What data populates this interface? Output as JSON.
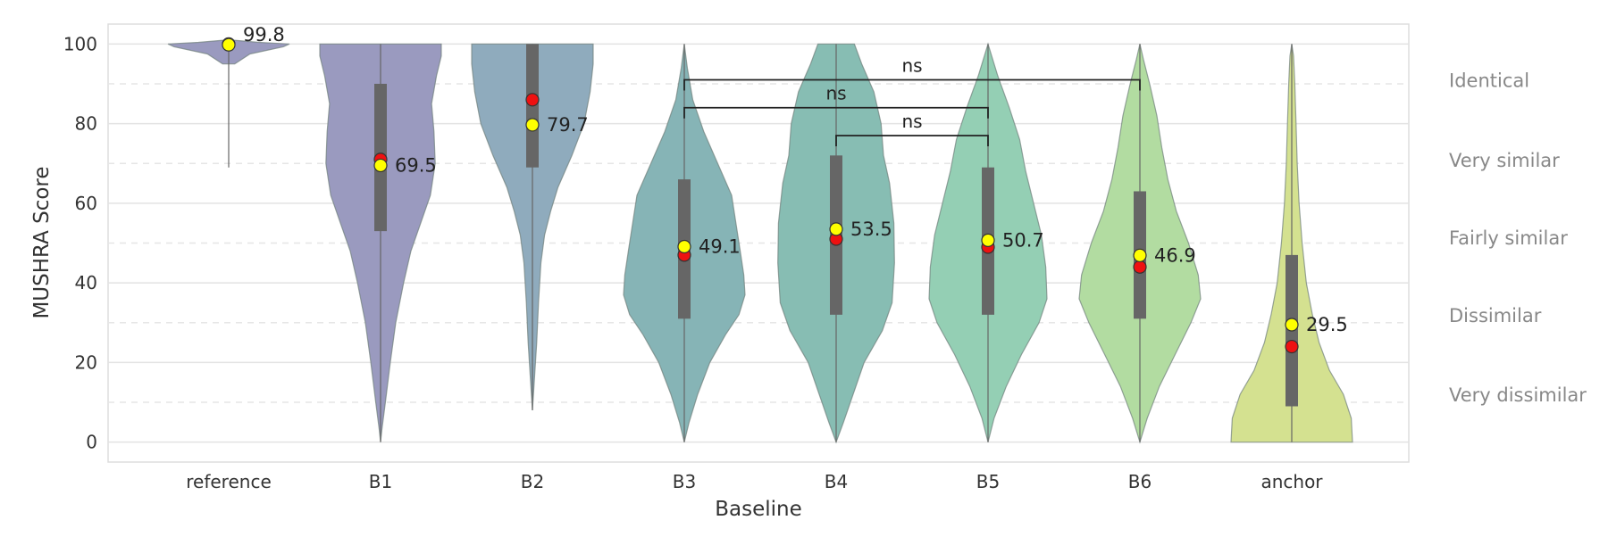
{
  "chart_data": {
    "type": "violin",
    "title": "",
    "xlabel": "Baseline",
    "ylabel": "MUSHRA Score",
    "ylim": [
      -5,
      105
    ],
    "yticks": [
      0,
      20,
      40,
      60,
      80,
      100
    ],
    "grid": true,
    "categories": [
      "reference",
      "B1",
      "B2",
      "B3",
      "B4",
      "B5",
      "B6",
      "anchor"
    ],
    "colors": [
      "#9a9abf",
      "#9a9abf",
      "#8fabbd",
      "#86b4b6",
      "#87bdb3",
      "#94cfb4",
      "#b2dca1",
      "#d4e190"
    ],
    "violins": [
      {
        "name": "reference",
        "mean": 99.8,
        "mean_label": "99.8",
        "median": 100,
        "box": [
          100,
          100
        ],
        "whisker": [
          69,
          100
        ],
        "shape": [
          [
            95,
            0.1
          ],
          [
            97.5,
            0.35
          ],
          [
            99.3,
            0.9
          ],
          [
            100,
            1.0
          ],
          [
            100.4,
            0.5
          ],
          [
            101,
            0.05
          ]
        ]
      },
      {
        "name": "B1",
        "mean": 69.5,
        "mean_label": "69.5",
        "median": 71,
        "box": [
          53,
          90
        ],
        "whisker": [
          0,
          100
        ],
        "shape": [
          [
            0,
            0.0
          ],
          [
            3,
            0.02
          ],
          [
            10,
            0.08
          ],
          [
            20,
            0.16
          ],
          [
            30,
            0.25
          ],
          [
            40,
            0.38
          ],
          [
            48,
            0.5
          ],
          [
            55,
            0.66
          ],
          [
            62,
            0.82
          ],
          [
            70,
            0.9
          ],
          [
            78,
            0.88
          ],
          [
            85,
            0.84
          ],
          [
            92,
            0.92
          ],
          [
            97,
            1.0
          ],
          [
            100,
            1.0
          ]
        ]
      },
      {
        "name": "B2",
        "mean": 79.7,
        "mean_label": "79.7",
        "median": 86,
        "box": [
          69,
          100
        ],
        "whisker": [
          8,
          100
        ],
        "shape": [
          [
            8,
            0.0
          ],
          [
            15,
            0.03
          ],
          [
            25,
            0.07
          ],
          [
            35,
            0.1
          ],
          [
            45,
            0.14
          ],
          [
            52,
            0.2
          ],
          [
            58,
            0.3
          ],
          [
            64,
            0.42
          ],
          [
            72,
            0.65
          ],
          [
            80,
            0.85
          ],
          [
            88,
            0.95
          ],
          [
            95,
            1.0
          ],
          [
            100,
            1.0
          ]
        ]
      },
      {
        "name": "B3",
        "mean": 49.1,
        "mean_label": "49.1",
        "median": 47,
        "box": [
          31,
          66
        ],
        "whisker": [
          0,
          100
        ],
        "shape": [
          [
            0,
            0.0
          ],
          [
            5,
            0.08
          ],
          [
            12,
            0.22
          ],
          [
            20,
            0.42
          ],
          [
            27,
            0.68
          ],
          [
            32,
            0.9
          ],
          [
            37,
            1.0
          ],
          [
            42,
            0.98
          ],
          [
            48,
            0.92
          ],
          [
            55,
            0.85
          ],
          [
            62,
            0.78
          ],
          [
            70,
            0.55
          ],
          [
            78,
            0.32
          ],
          [
            86,
            0.14
          ],
          [
            94,
            0.05
          ],
          [
            100,
            0.0
          ]
        ]
      },
      {
        "name": "B4",
        "mean": 53.5,
        "mean_label": "53.5",
        "median": 51,
        "box": [
          32,
          72
        ],
        "whisker": [
          0,
          100
        ],
        "shape": [
          [
            0,
            0.0
          ],
          [
            5,
            0.12
          ],
          [
            12,
            0.28
          ],
          [
            20,
            0.46
          ],
          [
            28,
            0.76
          ],
          [
            35,
            0.92
          ],
          [
            45,
            0.96
          ],
          [
            55,
            0.95
          ],
          [
            65,
            0.88
          ],
          [
            72,
            0.78
          ],
          [
            80,
            0.74
          ],
          [
            88,
            0.62
          ],
          [
            95,
            0.42
          ],
          [
            100,
            0.3
          ]
        ]
      },
      {
        "name": "B5",
        "mean": 50.7,
        "mean_label": "50.7",
        "median": 49,
        "box": [
          32,
          69
        ],
        "whisker": [
          0,
          100
        ],
        "shape": [
          [
            0,
            0.0
          ],
          [
            6,
            0.1
          ],
          [
            14,
            0.3
          ],
          [
            22,
            0.55
          ],
          [
            30,
            0.84
          ],
          [
            36,
            0.97
          ],
          [
            44,
            0.95
          ],
          [
            52,
            0.88
          ],
          [
            60,
            0.75
          ],
          [
            68,
            0.62
          ],
          [
            76,
            0.52
          ],
          [
            84,
            0.35
          ],
          [
            92,
            0.16
          ],
          [
            98,
            0.04
          ],
          [
            100,
            0.0
          ]
        ]
      },
      {
        "name": "B6",
        "mean": 46.9,
        "mean_label": "46.9",
        "median": 44,
        "box": [
          31,
          63
        ],
        "whisker": [
          0,
          100
        ],
        "shape": [
          [
            0,
            0.0
          ],
          [
            6,
            0.12
          ],
          [
            14,
            0.32
          ],
          [
            22,
            0.58
          ],
          [
            30,
            0.84
          ],
          [
            36,
            1.0
          ],
          [
            42,
            0.96
          ],
          [
            50,
            0.8
          ],
          [
            58,
            0.6
          ],
          [
            66,
            0.46
          ],
          [
            74,
            0.36
          ],
          [
            82,
            0.28
          ],
          [
            90,
            0.16
          ],
          [
            96,
            0.06
          ],
          [
            100,
            0.0
          ]
        ]
      },
      {
        "name": "anchor",
        "mean": 29.5,
        "mean_label": "29.5",
        "median": 24,
        "box": [
          9,
          47
        ],
        "whisker": [
          0,
          100
        ],
        "shape": [
          [
            0,
            1.0
          ],
          [
            6,
            0.98
          ],
          [
            12,
            0.85
          ],
          [
            18,
            0.62
          ],
          [
            25,
            0.45
          ],
          [
            32,
            0.34
          ],
          [
            40,
            0.24
          ],
          [
            50,
            0.17
          ],
          [
            60,
            0.12
          ],
          [
            70,
            0.09
          ],
          [
            80,
            0.07
          ],
          [
            90,
            0.05
          ],
          [
            97,
            0.03
          ],
          [
            100,
            0.0
          ]
        ]
      }
    ],
    "significance": [
      {
        "label": "ns",
        "from": "B3",
        "to": "B6",
        "y": 91
      },
      {
        "label": "ns",
        "from": "B3",
        "to": "B5",
        "y": 84
      },
      {
        "label": "ns",
        "from": "B4",
        "to": "B5",
        "y": 77
      }
    ],
    "category_labels": [
      {
        "label": "Identical",
        "y": 91
      },
      {
        "label": "Very similar",
        "y": 71
      },
      {
        "label": "Fairly similar",
        "y": 51.5
      },
      {
        "label": "Dissimilar",
        "y": 32
      },
      {
        "label": "Very dissimilar",
        "y": 12
      }
    ],
    "dashed_bands": [
      90,
      70,
      50,
      30,
      10
    ]
  }
}
